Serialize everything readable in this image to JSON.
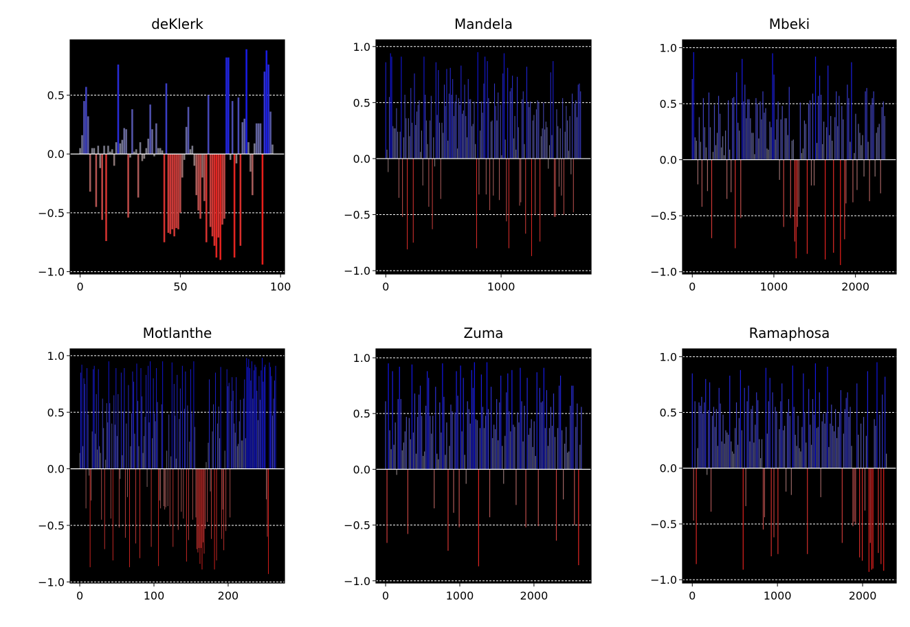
{
  "chart_data": [
    {
      "type": "bar",
      "title": "deKlerk",
      "n": 97,
      "xlim": [
        -5,
        102
      ],
      "ylim": [
        -1.02,
        0.97
      ],
      "xticks": [
        {
          "v": 0,
          "label": "0"
        },
        {
          "v": 50,
          "label": "50"
        },
        {
          "v": 100,
          "label": "100"
        }
      ],
      "yticks": [
        {
          "v": 0.5,
          "label": "0.5"
        },
        {
          "v": 0.0,
          "label": "0.0"
        },
        {
          "v": -0.5,
          "label": "−0.5"
        },
        {
          "v": -1.0,
          "label": "−1.0"
        }
      ],
      "gridlines": [
        0.5,
        -0.5,
        -1.0
      ],
      "values": [
        0.05,
        0.16,
        0.45,
        0.57,
        0.32,
        -0.32,
        0.05,
        0.05,
        -0.45,
        0.07,
        -0.12,
        -0.56,
        0.07,
        -0.74,
        0.07,
        0.02,
        0.04,
        -0.1,
        0.1,
        0.76,
        0.09,
        0.12,
        0.22,
        0.21,
        -0.54,
        -0.03,
        0.38,
        0.02,
        0.04,
        -0.37,
        0.1,
        -0.06,
        -0.04,
        0.05,
        0.13,
        0.42,
        0.21,
        -0.02,
        0.26,
        0.05,
        0.05,
        0.03,
        -0.75,
        0.6,
        -0.67,
        -0.68,
        -0.64,
        -0.7,
        -0.63,
        -0.64,
        -0.5,
        -0.2,
        -0.05,
        0.23,
        0.4,
        0.04,
        0.07,
        -0.1,
        -0.35,
        -0.48,
        -0.55,
        -0.2,
        -0.4,
        -0.75,
        0.5,
        -0.62,
        -0.7,
        -0.78,
        -0.88,
        -0.71,
        -0.9,
        -0.6,
        -0.55,
        0.82,
        0.82,
        -0.05,
        0.45,
        -0.88,
        -0.08,
        0.48,
        -0.78,
        0.27,
        0.3,
        0.89,
        0.1,
        -0.15,
        -0.35,
        0.09,
        0.26,
        0.26,
        0.26,
        -0.94,
        0.7,
        0.88,
        0.76,
        0.36,
        0.08
      ]
    },
    {
      "type": "bar",
      "title": "Mandela",
      "n": 1690,
      "xlim": [
        -85,
        1780
      ],
      "ylim": [
        -1.03,
        1.06
      ],
      "xticks": [
        {
          "v": 0,
          "label": "0"
        },
        {
          "v": 1000,
          "label": "1000"
        }
      ],
      "yticks": [
        {
          "v": 1.0,
          "label": "1.0"
        },
        {
          "v": 0.5,
          "label": "0.5"
        },
        {
          "v": 0.0,
          "label": "0.0"
        },
        {
          "v": -0.5,
          "label": "−0.5"
        },
        {
          "v": -1.0,
          "label": "−1.0"
        }
      ],
      "gridlines": [
        1.0,
        0.5,
        -0.5,
        -1.0
      ],
      "values": [
        0.86,
        0.08,
        -0.12,
        0.55,
        0.94,
        0.91,
        0.29,
        0.27,
        0.27,
        0.45,
        0.24,
        -0.35,
        0.24,
        0.91,
        -0.52,
        0.19,
        0.57,
        0.36,
        -0.81,
        0.36,
        0.2,
        0.63,
        0.32,
        -0.75,
        0.76,
        0.3,
        0.42,
        0.48,
        0.52,
        0.06,
        0.25,
        -0.24,
        0.91,
        0.57,
        0.34,
        0.13,
        -0.43,
        0.34,
        0.56,
        -0.63,
        0.19,
        -0.07,
        0.86,
        0.39,
        0.79,
        0.32,
        -0.36,
        0.32,
        0.23,
        0.66,
        0.47,
        0.8,
        0.16,
        0.58,
        0.81,
        0.57,
        0.71,
        0.38,
        0.51,
        0.57,
        0.09,
        0.54,
        0.48,
        0.83,
        0.4,
        0.43,
        0.66,
        0.38,
        0.19,
        0.71,
        0.53,
        0.53,
        0.29,
        0.31,
        0.51,
        0.13,
        -0.8,
        0.95,
        -0.32,
        0.25,
        0.51,
        0.41,
        0.67,
        0.91,
        -0.32,
        0.87,
        0.54,
        -0.46,
        0.33,
        0.34,
        -0.33,
        0.67,
        0.47,
        0.34,
        0.59,
        -0.37,
        0.48,
        0.03,
        0.76,
        0.94,
        0.17,
        -0.56,
        0.81,
        -0.8,
        0.6,
        0.63,
        0.74,
        0.18,
        0.38,
        0.08,
        0.73,
        0.28,
        -0.42,
        -0.39,
        0.53,
        0.6,
        0.13,
        -0.67,
        0.82,
        0.5,
        0.46,
        0.51,
        -0.87,
        0.34,
        0.39,
        -0.5,
        0.44,
        0.52,
        0.5,
        -0.74,
        0.2,
        0.27,
        0.5,
        0.26,
        0.33,
        0.28,
        -0.09,
        0.12,
        0.77,
        0.21,
        0.87,
        -0.52,
        -0.52,
        0.44,
        0.29,
        -0.25,
        0.27,
        -0.33,
        0.54,
        -0.5,
        0.24,
        0.47,
        0.34,
        0.07,
        0.38,
        -0.14,
        0.58,
        -0.48,
        0.49,
        0.52,
        0.37,
        0.66,
        0.67,
        0.6
      ],
      "note": ""
    },
    {
      "type": "bar",
      "title": "Mbeki",
      "n": 2360,
      "xlim": [
        -120,
        2500
      ],
      "ylim": [
        -1.02,
        1.07
      ],
      "xticks": [
        {
          "v": 0,
          "label": "0"
        },
        {
          "v": 1000,
          "label": "1000"
        },
        {
          "v": 2000,
          "label": "2000"
        }
      ],
      "yticks": [
        {
          "v": 1.0,
          "label": "1.0"
        },
        {
          "v": 0.5,
          "label": "0.5"
        },
        {
          "v": 0.0,
          "label": "0.0"
        },
        {
          "v": -0.5,
          "label": "−0.5"
        },
        {
          "v": -1.0,
          "label": "−1.0"
        }
      ],
      "gridlines": [
        1.0,
        0.5,
        -0.5,
        -1.0
      ],
      "values": [
        0.72,
        0.96,
        0.2,
        0.17,
        -0.22,
        0.38,
        0.16,
        -0.42,
        0.55,
        0.29,
        0.11,
        -0.28,
        0.6,
        0.29,
        -0.7,
        0.07,
        0.49,
        0.13,
        0.24,
        0.57,
        0.41,
        0.11,
        0.21,
        0.04,
        0.26,
        -0.35,
        0.53,
        0.09,
        -0.29,
        0.55,
        0.56,
        -0.79,
        0.78,
        0.33,
        0.26,
        -0.52,
        0.9,
        0.52,
        0.67,
        0.37,
        0.54,
        0.54,
        0.37,
        0.24,
        0.24,
        0.05,
        0.55,
        0.5,
        0.19,
        0.52,
        0.36,
        0.61,
        0.42,
        0.46,
        0.1,
        0.09,
        0.34,
        0.29,
        0.95,
        0.76,
        0.18,
        0.36,
        0.52,
        -0.18,
        0.36,
        0.48,
        -0.6,
        0.37,
        0.37,
        0.22,
        0.65,
        -0.52,
        0.17,
        0.18,
        -0.73,
        -0.88,
        -0.6,
        -0.42,
        0.51,
        0.06,
        0.1,
        0.35,
        0.32,
        -0.84,
        0.5,
        0.53,
        -0.23,
        0.59,
        -0.23,
        0.92,
        0.15,
        0.57,
        0.75,
        0.58,
        0.14,
        0.34,
        -0.89,
        0.29,
        0.84,
        0.22,
        0.39,
        0.17,
        -0.83,
        0.38,
        0.61,
        0.3,
        0.57,
        -0.94,
        0.48,
        0.36,
        -0.71,
        -0.39,
        0.67,
        0.55,
        0.16,
        0.87,
        -0.38,
        0.06,
        0.41,
        -0.27,
        0.32,
        0.24,
        0.13,
        0.22,
        -0.15,
        0.61,
        0.64,
        0.16,
        -0.37,
        0.49,
        0.55,
        0.61,
        -0.15,
        0.24,
        0.29,
        0.32,
        -0.3,
        0.47,
        0.52,
        0.39
      ],
      "note": ""
    },
    {
      "type": "bar",
      "title": "Motlanthe",
      "n": 265,
      "xlim": [
        -13,
        276
      ],
      "ylim": [
        -1.01,
        1.06
      ],
      "xticks": [
        {
          "v": 0,
          "label": "0"
        },
        {
          "v": 100,
          "label": "100"
        },
        {
          "v": 200,
          "label": "200"
        }
      ],
      "yticks": [
        {
          "v": 1.0,
          "label": "1.0"
        },
        {
          "v": 0.5,
          "label": "0.5"
        },
        {
          "v": 0.0,
          "label": "0.0"
        },
        {
          "v": -0.5,
          "label": "−0.5"
        },
        {
          "v": -1.0,
          "label": "−1.0"
        }
      ],
      "gridlines": [
        1.0,
        0.5,
        -0.5,
        -1.0
      ],
      "values": [
        0.14,
        0.85,
        0.92,
        0.2,
        0.8,
        0.75,
        -0.35,
        0.89,
        0.48,
        -0.06,
        -0.87,
        -0.28,
        0.33,
        0.88,
        0.91,
        0.31,
        0.66,
        0.17,
        0.88,
        0.2,
        0.14,
        -0.45,
        0.62,
        0.36,
        -0.71,
        0.08,
        0.58,
        0.41,
        0.95,
        0.58,
        -0.44,
        0.4,
        -0.81,
        0.65,
        0.39,
        0.89,
        0.29,
        0.66,
        -0.52,
        -0.09,
        0.85,
        0.12,
        0.5,
        0.89,
        -0.61,
        0.4,
        -0.25,
        0.74,
        -0.87,
        0.2,
        0.49,
        0.86,
        0.77,
        0.31,
        -0.66,
        0.93,
        0.6,
        0.2,
        -0.79,
        0.89,
        0.64,
        0.14,
        0.29,
        0.46,
        0.83,
        -0.16,
        0.91,
        0.41,
        0.95,
        -0.69,
        0.27,
        0.8,
        0.49,
        0.42,
        0.89,
        0.59,
        -0.86,
        -0.28,
        -0.35,
        0.57,
        0.95,
        -0.33,
        -0.36,
        -0.34,
        0.16,
        -0.33,
        0.48,
        -0.51,
        0.11,
        0.94,
        -0.69,
        0.75,
        0.47,
        0.09,
        0.83,
        -0.54,
        0.44,
        0.71,
        -0.38,
        0.91,
        -0.44,
        0.53,
        0.86,
        -0.82,
        0.56,
        -0.63,
        0.24,
        0.88,
        0.49,
        -0.45,
        0.95,
        0.37,
        -0.43,
        -0.71,
        -0.74,
        -0.7,
        -0.84,
        -0.7,
        -0.89,
        -0.65,
        -0.75,
        -0.53,
        0.06,
        -0.47,
        0.23,
        0.79,
        -0.2,
        -0.62,
        0.33,
        0.57,
        -0.89,
        0.85,
        -0.81,
        0.4,
        0.55,
        0.27,
        0.9,
        -0.62,
        -0.36,
        -0.72,
        0.16,
        -0.55,
        0.88,
        0.73,
        0.76,
        -0.43,
        0.6,
        0.81,
        0.69,
        0.4,
        0.32,
        0.81,
        0.2,
        0.22,
        0.42,
        0.61,
        0.25,
        0.25,
        0.62,
        0.79,
        0.27,
        0.98,
        0.9,
        0.97,
        0.89,
        0.78,
        0.95,
        0.62,
        0.87,
        0.92,
        0.9,
        0.69,
        0.43,
        0.82,
        0.61,
        0.87,
        0.98,
        0.77,
        0.9,
        0.92,
        -0.27,
        -0.6,
        -0.93,
        0.94,
        0.9,
        0.82,
        0.47,
        0.62,
        0.78,
        0.91
      ],
      "note": ""
    },
    {
      "type": "bar",
      "title": "Zuma",
      "n": 2640,
      "xlim": [
        -130,
        2770
      ],
      "ylim": [
        -1.02,
        1.08
      ],
      "xticks": [
        {
          "v": 0,
          "label": "0"
        },
        {
          "v": 1000,
          "label": "1000"
        },
        {
          "v": 2000,
          "label": "2000"
        }
      ],
      "yticks": [
        {
          "v": 1.0,
          "label": "1.0"
        },
        {
          "v": 0.5,
          "label": "0.5"
        },
        {
          "v": 0.0,
          "label": "0.0"
        },
        {
          "v": -0.5,
          "label": "−0.5"
        },
        {
          "v": -1.0,
          "label": "−1.0"
        }
      ],
      "gridlines": [
        1.0,
        0.5,
        -0.5,
        -1.0
      ],
      "values": [
        0.61,
        -0.66,
        0.95,
        0.35,
        0.18,
        0.88,
        0.22,
        0.42,
        -0.05,
        0.63,
        0.92,
        0.63,
        0.17,
        0.24,
        0.34,
        0.47,
        -0.58,
        0.46,
        0.27,
        0.94,
        0.33,
        0.68,
        0.14,
        0.47,
        0.67,
        0.75,
        0.48,
        0.12,
        0.16,
        0.57,
        0.88,
        0.82,
        0.48,
        0.32,
        0.48,
        -0.35,
        0.74,
        0.14,
        0.09,
        0.6,
        0.33,
        0.95,
        0.65,
        0.13,
        0.42,
        -0.73,
        0.21,
        0.58,
        0.52,
        -0.39,
        0.51,
        0.88,
        0.66,
        -0.52,
        0.93,
        0.34,
        0.82,
        0.13,
        -0.13,
        0.61,
        0.54,
        0.41,
        0.89,
        0.73,
        0.96,
        0.45,
        0.44,
        -0.87,
        0.37,
        0.85,
        0.56,
        0.37,
        0.48,
        0.96,
        0.54,
        -0.43,
        0.74,
        0.28,
        0.4,
        0.36,
        0.63,
        0.26,
        0.6,
        0.84,
        0.21,
        -0.13,
        0.3,
        0.69,
        0.86,
        0.52,
        0.34,
        0.89,
        0.4,
        0.38,
        -0.32,
        0.51,
        0.42,
        0.91,
        0.61,
        0.25,
        0.57,
        -0.52,
        0.82,
        0.31,
        0.37,
        0.45,
        0.2,
        0.43,
        0.12,
        0.87,
        -0.51,
        0.73,
        0.6,
        0.61,
        0.91,
        0.37,
        0.71,
        0.21,
        0.37,
        0.56,
        0.39,
        0.68,
        0.29,
        -0.64,
        0.37,
        0.75,
        0.84,
        0.35,
        -0.27,
        0.23,
        0.38,
        0.15,
        0.16,
        0.57,
        0.75,
        0.75,
        -0.5,
        0.38,
        0.59,
        -0.86,
        0.22,
        0.56
      ],
      "note": ""
    },
    {
      "type": "bar",
      "title": "Ramaphosa",
      "n": 2280,
      "xlim": [
        -115,
        2395
      ],
      "ylim": [
        -1.03,
        1.07
      ],
      "xticks": [
        {
          "v": 0,
          "label": "0"
        },
        {
          "v": 1000,
          "label": "1000"
        },
        {
          "v": 2000,
          "label": "2000"
        }
      ],
      "yticks": [
        {
          "v": 1.0,
          "label": "1.0"
        },
        {
          "v": 0.5,
          "label": "0.5"
        },
        {
          "v": 0.0,
          "label": "0.0"
        },
        {
          "v": -0.5,
          "label": "−0.5"
        },
        {
          "v": -1.0,
          "label": "−1.0"
        }
      ],
      "gridlines": [
        1.0,
        0.5,
        -0.5,
        -1.0
      ],
      "values": [
        0.85,
        -0.47,
        0.6,
        -0.86,
        0.18,
        0.59,
        0.56,
        0.64,
        0.49,
        0.59,
        0.8,
        -0.06,
        0.52,
        0.77,
        -0.39,
        0.47,
        0.55,
        0.37,
        0.53,
        0.2,
        0.72,
        0.58,
        0.24,
        0.48,
        0.22,
        0.34,
        0.32,
        0.3,
        0.83,
        0.24,
        0.15,
        0.13,
        0.36,
        0.59,
        0.21,
        0.45,
        0.88,
        0.34,
        -0.91,
        0.72,
        -0.34,
        0.6,
        0.74,
        0.24,
        0.53,
        0.56,
        0.23,
        0.39,
        0.68,
        0.61,
        0.26,
        0.09,
        0.26,
        -0.55,
        -0.44,
        0.9,
        0.31,
        0.6,
        0.81,
        -0.79,
        0.68,
        -0.62,
        0.55,
        0.51,
        -0.77,
        0.35,
        0.6,
        0.76,
        0.34,
        0.38,
        -0.21,
        0.5,
        0.62,
        0.47,
        -0.24,
        0.92,
        0.55,
        0.3,
        0.2,
        0.47,
        0.18,
        0.15,
        0.37,
        0.85,
        0.5,
        0.23,
        -0.77,
        0.71,
        0.39,
        0.21,
        0.62,
        0.48,
        0.94,
        0.36,
        0.37,
        0.68,
        -0.26,
        0.42,
        0.49,
        0.4,
        0.5,
        0.91,
        0.19,
        0.4,
        0.57,
        0.38,
        0.33,
        0.53,
        0.27,
        0.37,
        0.5,
        0.7,
        -0.67,
        0.31,
        0.53,
        0.63,
        0.68,
        0.46,
        0.55,
        0.2,
        -0.52,
        -0.48,
        -0.5,
        0.76,
        0.3,
        -0.8,
        0.4,
        -0.83,
        0.46,
        -0.38,
        0.29,
        0.87,
        -0.93,
        -0.67,
        -0.91,
        -0.9,
        0.44,
        0.38,
        0.95,
        -0.76,
        0.48,
        -0.86,
        0.66,
        -0.92,
        0.82,
        0.13
      ],
      "note": ""
    }
  ]
}
